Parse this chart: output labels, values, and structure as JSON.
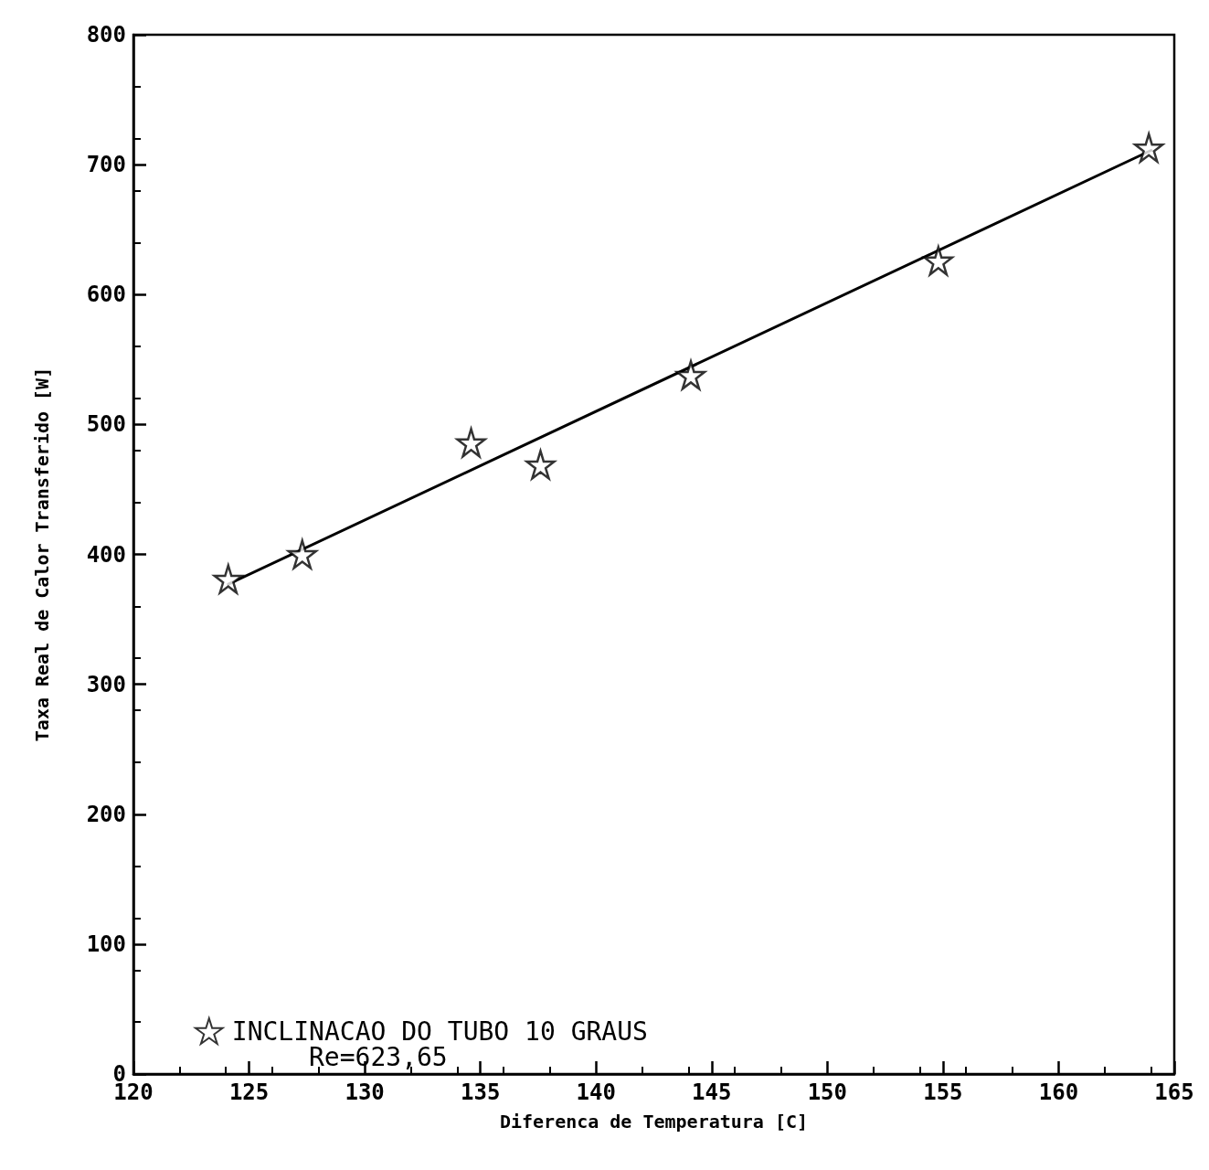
{
  "chart_data": {
    "type": "scatter",
    "xlabel": "Diferenca de Temperatura [C]",
    "ylabel": "Taxa Real de Calor Transferido [W]",
    "xlim": [
      120,
      165
    ],
    "xticks": [
      120,
      125,
      130,
      135,
      140,
      145,
      150,
      155,
      160,
      165
    ],
    "ylim": [
      0,
      800
    ],
    "yticks": [
      0,
      100,
      200,
      300,
      400,
      500,
      600,
      700,
      800
    ],
    "grid": false,
    "legend": "bottom left",
    "annotations": [
      "Re=623,65"
    ],
    "series": [
      {
        "name": "INCLINACAO DO TUBO 10 GRAUS",
        "color": "#000000",
        "marker": "star",
        "x": [
          124.1,
          127.3,
          134.6,
          137.6,
          144.1,
          154.8,
          163.9
        ],
        "values": [
          381,
          400,
          486,
          469,
          538,
          626,
          713
        ]
      },
      {
        "type": "line",
        "marker": "none",
        "color": "#000000",
        "x": [
          124.1,
          164
        ],
        "values": [
          377,
          711
        ]
      }
    ]
  }
}
